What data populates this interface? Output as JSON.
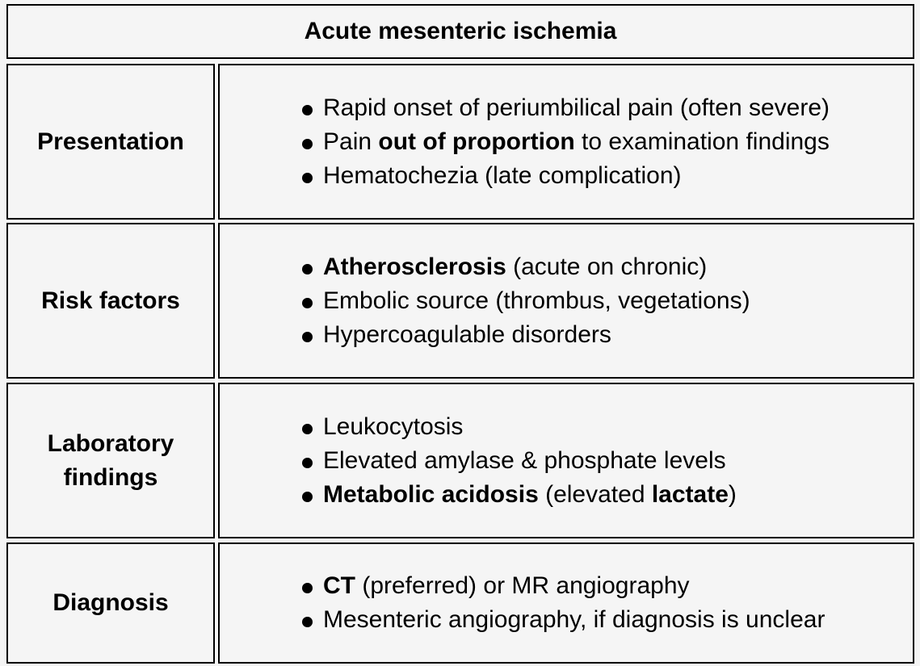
{
  "title": "Acute mesenteric ischemia",
  "rows": [
    {
      "label": "Presentation",
      "items": [
        [
          {
            "text": "Rapid onset of periumbilical pain (often severe)",
            "bold": false
          }
        ],
        [
          {
            "text": "Pain ",
            "bold": false
          },
          {
            "text": "out of proportion",
            "bold": true
          },
          {
            "text": " to examination findings",
            "bold": false
          }
        ],
        [
          {
            "text": "Hematochezia (late complication)",
            "bold": false
          }
        ]
      ]
    },
    {
      "label": "Risk factors",
      "items": [
        [
          {
            "text": "Atherosclerosis",
            "bold": true
          },
          {
            "text": " (acute on chronic)",
            "bold": false
          }
        ],
        [
          {
            "text": "Embolic source (thrombus, vegetations)",
            "bold": false
          }
        ],
        [
          {
            "text": "Hypercoagulable disorders",
            "bold": false
          }
        ]
      ]
    },
    {
      "label_lines": [
        "Laboratory",
        "findings"
      ],
      "items": [
        [
          {
            "text": "Leukocytosis",
            "bold": false
          }
        ],
        [
          {
            "text": "Elevated amylase & phosphate levels",
            "bold": false
          }
        ],
        [
          {
            "text": "Metabolic acidosis",
            "bold": true
          },
          {
            "text": " (elevated ",
            "bold": false
          },
          {
            "text": "lactate",
            "bold": true
          },
          {
            "text": ")",
            "bold": false
          }
        ]
      ]
    },
    {
      "label": "Diagnosis",
      "items": [
        [
          {
            "text": "CT",
            "bold": true
          },
          {
            "text": " (preferred) or MR angiography",
            "bold": false
          }
        ],
        [
          {
            "text": "Mesenteric angiography, if diagnosis is unclear",
            "bold": false
          }
        ]
      ]
    }
  ]
}
